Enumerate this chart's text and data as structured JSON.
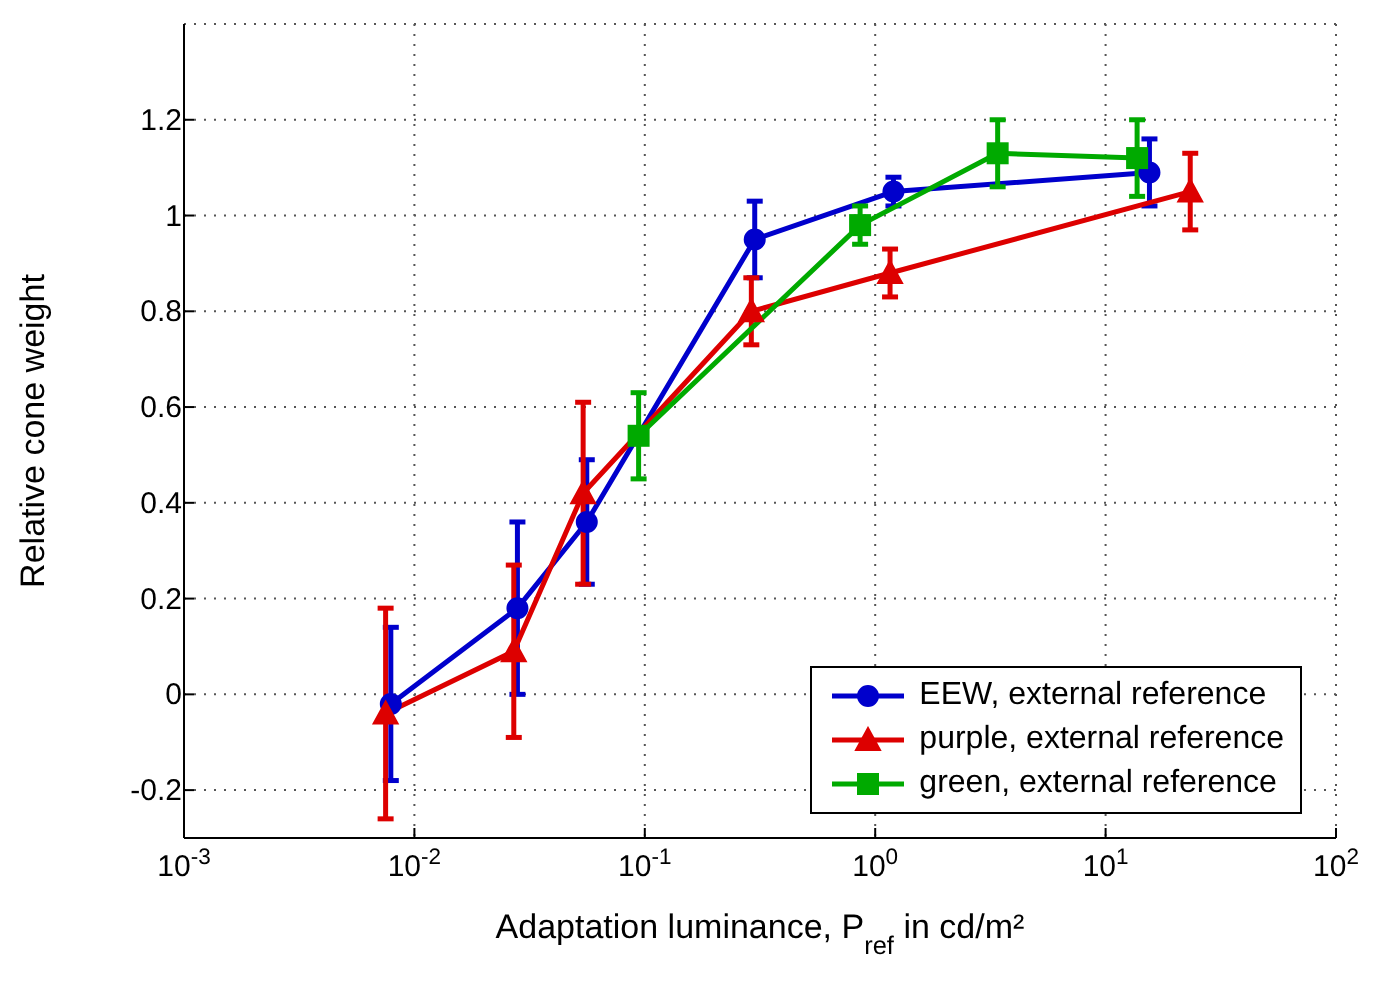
{
  "chart_data": {
    "type": "line",
    "xlabel": "Adaptation luminance, P$_{ref}$ in cd/m²",
    "ylabel": "Relative cone weight",
    "log": "x",
    "xlim": [
      0.001,
      100
    ],
    "xticks": [
      {
        "value": 0.001,
        "label": "10$^{-3}$"
      },
      {
        "value": 0.01,
        "label": "10$^{-2}$"
      },
      {
        "value": 0.1,
        "label": "10$^{-1}$"
      },
      {
        "value": 1,
        "label": "10$^{0}$"
      },
      {
        "value": 10,
        "label": "10$^{1}$"
      },
      {
        "value": 100,
        "label": "10$^{2}$"
      }
    ],
    "ylim": [
      -0.3,
      1.4
    ],
    "yticks": [
      -0.2,
      0,
      0.2,
      0.4,
      0.6,
      0.8,
      1,
      1.2
    ],
    "grid": true,
    "legend": "bottom right",
    "line_style": "solid",
    "series": [
      {
        "name": "EEW, external reference",
        "color": "#0000cc",
        "marker": "circle",
        "x": [
          0.0079,
          0.028,
          0.056,
          0.3,
          1.2,
          15.5
        ],
        "values": [
          -0.02,
          0.18,
          0.36,
          0.95,
          1.05,
          1.09
        ],
        "errors": [
          0.16,
          0.18,
          0.13,
          0.08,
          0.03,
          0.07
        ]
      },
      {
        "name": "purple, external reference",
        "color": "#dd0000",
        "marker": "triangle",
        "x": [
          0.0075,
          0.027,
          0.054,
          0.29,
          1.16,
          23.3
        ],
        "values": [
          -0.04,
          0.09,
          0.42,
          0.8,
          0.88,
          1.05
        ],
        "errors": [
          0.22,
          0.18,
          0.19,
          0.07,
          0.05,
          0.08
        ]
      },
      {
        "name": "green, external reference",
        "color": "#00aa00",
        "marker": "square",
        "x": [
          0.094,
          0.86,
          3.4,
          13.7
        ],
        "values": [
          0.54,
          0.98,
          1.13,
          1.12
        ],
        "errors": [
          0.09,
          0.04,
          0.07,
          0.08
        ]
      }
    ]
  }
}
